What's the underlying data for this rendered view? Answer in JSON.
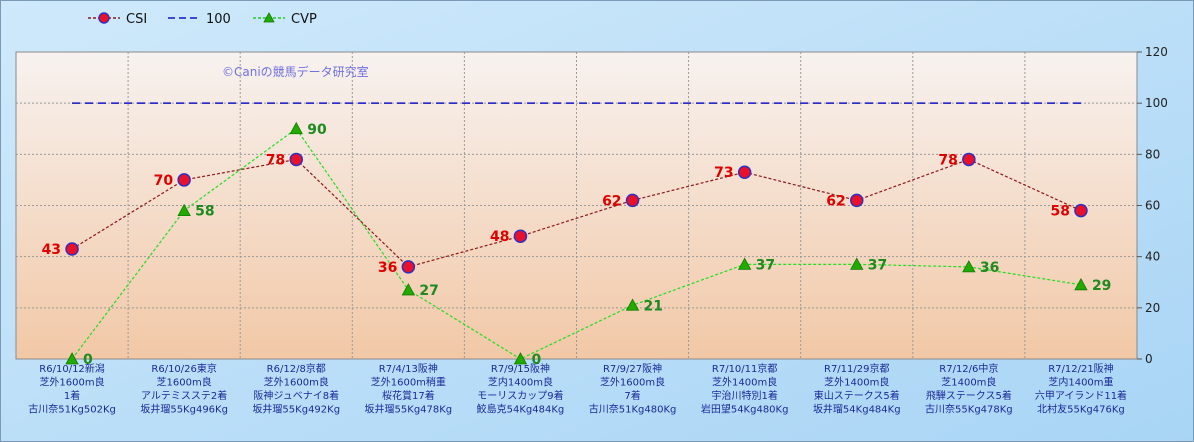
{
  "watermark": "©Caniの競馬データ研究室",
  "legend": [
    {
      "label": "CSI",
      "color": "#8b1a1a",
      "marker": "circle"
    },
    {
      "label": "100",
      "color": "#1414c8",
      "marker": "none"
    },
    {
      "label": "CVP",
      "color": "#22cc22",
      "marker": "triangle"
    }
  ],
  "colors": {
    "csi_line": "#8b1a1a",
    "csi_marker_fill": "#e8102a",
    "csi_marker_stroke": "#3030c0",
    "csi_label": "#e00000",
    "cvp_line": "#22dd22",
    "cvp_marker": "#22aa00",
    "cvp_label": "#1f8a1f",
    "ref_line": "#1414c8",
    "category_text": "#1a2a99",
    "background_top": "#f7f2f0",
    "background_bottom": "#f2c8a6"
  },
  "chart_data": {
    "type": "line",
    "ylim": [
      0,
      120
    ],
    "yticks": [
      "0",
      "20",
      "40",
      "60",
      "80",
      "100",
      "120"
    ],
    "grid": true,
    "legend_position": "top-left",
    "categories": [
      [
        "R6/10/12新潟",
        "芝外1600m良",
        "1着",
        "古川奈51Kg502Kg"
      ],
      [
        "R6/10/26東京",
        "芝1600m良",
        "アルテミスステ2着",
        "坂井瑠55Kg496Kg"
      ],
      [
        "R6/12/8京都",
        "芝外1600m良",
        "阪神ジュベナイ8着",
        "坂井瑠55Kg492Kg"
      ],
      [
        "R7/4/13阪神",
        "芝外1600m稍重",
        "桜花賞17着",
        "坂井瑠55Kg478Kg"
      ],
      [
        "R7/9/15阪神",
        "芝内1400m良",
        "モーリスカップ9着",
        "鮫島克54Kg484Kg"
      ],
      [
        "R7/9/27阪神",
        "芝外1600m良",
        "7着",
        "古川奈51Kg480Kg"
      ],
      [
        "R7/10/11京都",
        "芝外1400m良",
        "宇治川特別1着",
        "岩田望54Kg480Kg"
      ],
      [
        "R7/11/29京都",
        "芝外1400m良",
        "東山ステークス5着",
        "坂井瑠54Kg484Kg"
      ],
      [
        "R7/12/6中京",
        "芝1400m良",
        "飛騨ステークス5着",
        "古川奈55Kg478Kg"
      ],
      [
        "R7/12/21阪神",
        "芝内1400m重",
        "六甲アイランド11着",
        "北村友55Kg476Kg"
      ]
    ],
    "series": [
      {
        "name": "CSI",
        "values": [
          43,
          70,
          78,
          36,
          48,
          62,
          73,
          62,
          78,
          58
        ]
      },
      {
        "name": "100",
        "values": [
          100,
          100,
          100,
          100,
          100,
          100,
          100,
          100,
          100,
          100
        ]
      },
      {
        "name": "CVP",
        "values": [
          0,
          58,
          90,
          27,
          0,
          21,
          37,
          37,
          36,
          29
        ]
      }
    ]
  }
}
